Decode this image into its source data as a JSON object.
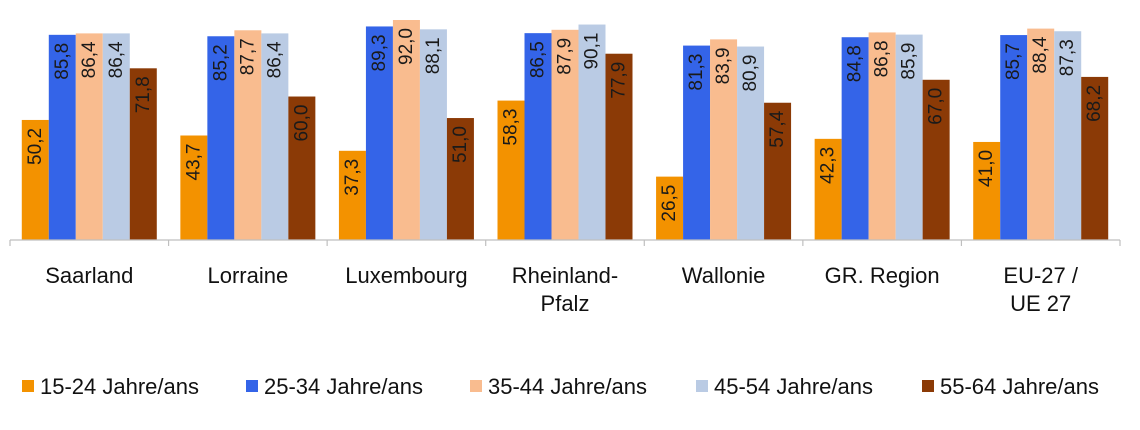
{
  "chart_data": {
    "type": "bar",
    "categories": [
      [
        "Saarland"
      ],
      [
        "Lorraine"
      ],
      [
        "Luxembourg"
      ],
      [
        "Rheinland-",
        "Pfalz"
      ],
      [
        "Wallonie"
      ],
      [
        "GR. Region"
      ],
      [
        "EU-27 /",
        "UE 27"
      ]
    ],
    "series": [
      {
        "name": "15-24 Jahre/ans",
        "color": "#F39200",
        "values": [
          50.2,
          43.7,
          37.3,
          58.3,
          26.5,
          42.3,
          41.0
        ],
        "labels": [
          "50,2",
          "43,7",
          "37,3",
          "58,3",
          "26,5",
          "42,3",
          "41,0"
        ]
      },
      {
        "name": "25-34 Jahre/ans",
        "color": "#3464E8",
        "values": [
          85.8,
          85.2,
          89.3,
          86.5,
          81.3,
          84.8,
          85.7
        ],
        "labels": [
          "85,8",
          "85,2",
          "89,3",
          "86,5",
          "81,3",
          "84,8",
          "85,7"
        ]
      },
      {
        "name": "35-44 Jahre/ans",
        "color": "#F9BC8F",
        "values": [
          86.4,
          87.7,
          92.0,
          87.9,
          83.9,
          86.8,
          88.4
        ],
        "labels": [
          "86,4",
          "87,7",
          "92,0",
          "87,9",
          "83,9",
          "86,8",
          "88,4"
        ]
      },
      {
        "name": "45-54 Jahre/ans",
        "color": "#BACBE4",
        "values": [
          86.4,
          86.4,
          88.1,
          90.1,
          80.9,
          85.9,
          87.3
        ],
        "labels": [
          "86,4",
          "86,4",
          "88,1",
          "90,1",
          "80,9",
          "85,9",
          "87,3"
        ]
      },
      {
        "name": "55-64 Jahre/ans",
        "color": "#8B3A06",
        "values": [
          71.8,
          60.0,
          51.0,
          77.9,
          57.4,
          67.0,
          68.2
        ],
        "labels": [
          "71,8",
          "60,0",
          "51,0",
          "77,9",
          "57,4",
          "67,0",
          "68,2"
        ]
      }
    ],
    "ylim": [
      0,
      92
    ],
    "grid": false,
    "legend": "bottom"
  }
}
